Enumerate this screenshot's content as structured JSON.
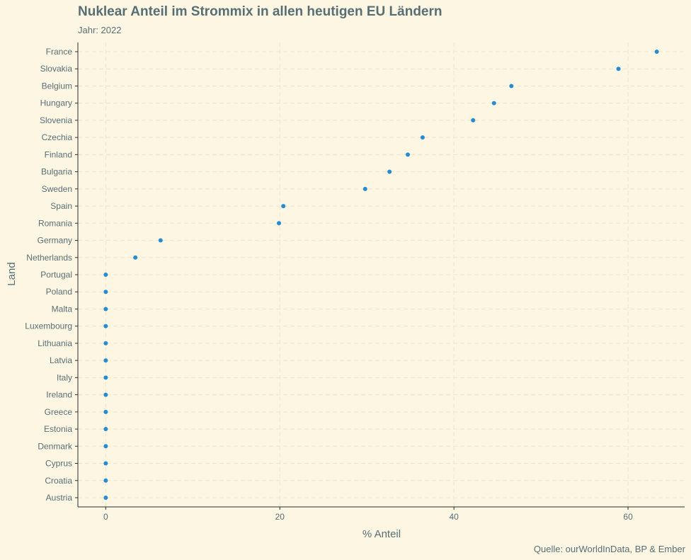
{
  "title": "Nuklear Anteil im Strommix in allen heutigen EU Ländern",
  "subtitle": "Jahr: 2022",
  "caption": "Quelle: ourWorldInData, BP & Ember",
  "colors": {
    "background": "#fdf6e3",
    "point": "#268bd2",
    "text": "#586e75",
    "axis": "#2b2b2b",
    "grid": "#efe6cc"
  },
  "chart_data": {
    "type": "scatter",
    "title": "Nuklear Anteil im Strommix in allen heutigen EU Ländern",
    "subtitle": "Jahr: 2022",
    "xlabel": "% Anteil",
    "ylabel": "Land",
    "xlim": [
      -3.2,
      66.5
    ],
    "x_ticks": [
      0,
      20,
      40,
      60
    ],
    "grid": true,
    "categories": [
      "France",
      "Slovakia",
      "Belgium",
      "Hungary",
      "Slovenia",
      "Czechia",
      "Finland",
      "Bulgaria",
      "Sweden",
      "Spain",
      "Romania",
      "Germany",
      "Netherlands",
      "Portugal",
      "Poland",
      "Malta",
      "Luxembourg",
      "Lithuania",
      "Latvia",
      "Italy",
      "Ireland",
      "Greece",
      "Estonia",
      "Denmark",
      "Cyprus",
      "Croatia",
      "Austria"
    ],
    "values": [
      63.3,
      58.9,
      46.6,
      44.6,
      42.2,
      36.4,
      34.7,
      32.6,
      29.8,
      20.4,
      19.9,
      6.3,
      3.4,
      0,
      0,
      0,
      0,
      0,
      0,
      0,
      0,
      0,
      0,
      0,
      0,
      0,
      0
    ]
  }
}
